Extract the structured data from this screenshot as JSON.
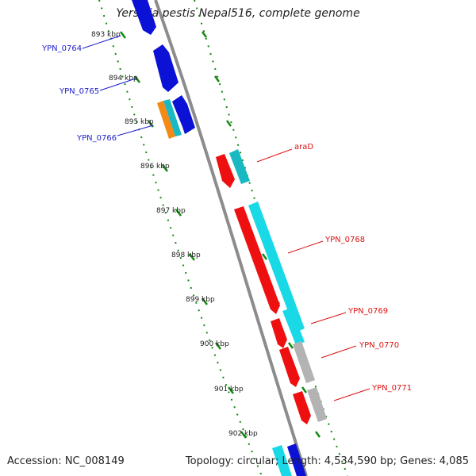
{
  "title": "Yersinia pestis Nepal516, complete genome",
  "accession_text": "Accession: NC_008149",
  "summary_text": "Topology: circular; Length: 4,534,590 bp; Genes: 4,085",
  "colors": {
    "backbone": "#8c8c8c",
    "ticks": "#138a13",
    "forward_label": "#1d1dcc",
    "reverse_label": "#dd1111",
    "blue": "#0b12d6",
    "cyan": "#19d9e6",
    "teal": "#18b9c2",
    "red": "#ee1010",
    "gray": "#b3b3b3",
    "orange": "#f28a15"
  },
  "ruler": {
    "unit": "kbp",
    "labels": [
      "893 kbp",
      "894 kbp",
      "895 kbp",
      "896 kbp",
      "897 kbp",
      "898 kbp",
      "899 kbp",
      "900 kbp",
      "901 kbp",
      "902 kbp"
    ]
  },
  "gene_labels": [
    {
      "name": "YPN_0764",
      "strand": "forward"
    },
    {
      "name": "YPN_0765",
      "strand": "forward"
    },
    {
      "name": "YPN_0766",
      "strand": "forward"
    },
    {
      "name": "araD",
      "strand": "reverse"
    },
    {
      "name": "YPN_0768",
      "strand": "reverse"
    },
    {
      "name": "YPN_0769",
      "strand": "reverse"
    },
    {
      "name": "YPN_0770",
      "strand": "reverse"
    },
    {
      "name": "YPN_0771",
      "strand": "reverse"
    }
  ]
}
